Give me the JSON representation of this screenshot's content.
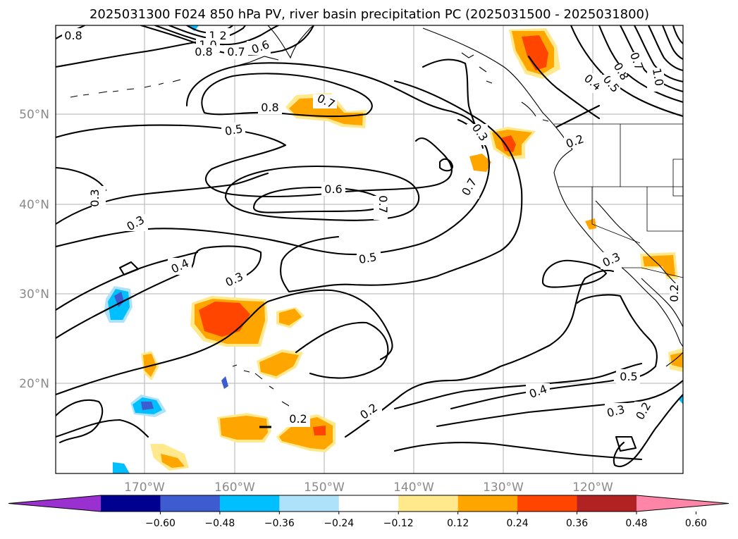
{
  "title": "2025031300 F024 850 hPa PV, river basin precipitation PC (2025031500 - 2025031800)",
  "x_ticks": [
    "170°W",
    "160°W",
    "150°W",
    "140°W",
    "130°W",
    "120°W"
  ],
  "y_ticks": [
    "50°N",
    "40°N",
    "30°N",
    "20°N"
  ],
  "colorbar": {
    "ticks": [
      "−0.60",
      "−0.48",
      "−0.36",
      "−0.24",
      "−0.12",
      "0.12",
      "0.24",
      "0.36",
      "0.48",
      "0.60"
    ],
    "colors": [
      "#9b30d0",
      "#000090",
      "#3c5ccf",
      "#00bfff",
      "#aee2fb",
      "#ffffff",
      "#ffe98c",
      "#ffa500",
      "#ff4500",
      "#b22222",
      "#ff85a8"
    ]
  },
  "contour_labels": [
    "0.8",
    "1.2",
    "1.0",
    "0.8",
    "0.7",
    "0.6",
    "0.8",
    "0.7",
    "0.5",
    "0.3",
    "0.3",
    "0.6",
    "0.7",
    "0.7",
    "0.2",
    "0.4",
    "0.5",
    "0.8",
    "0.7",
    "1.0",
    "0.3",
    "0.4",
    "0.3",
    "0.5",
    "0.3",
    "0.2",
    "0.5",
    "0.4",
    "0.3",
    "0.2",
    "0.2",
    "0.2"
  ]
}
